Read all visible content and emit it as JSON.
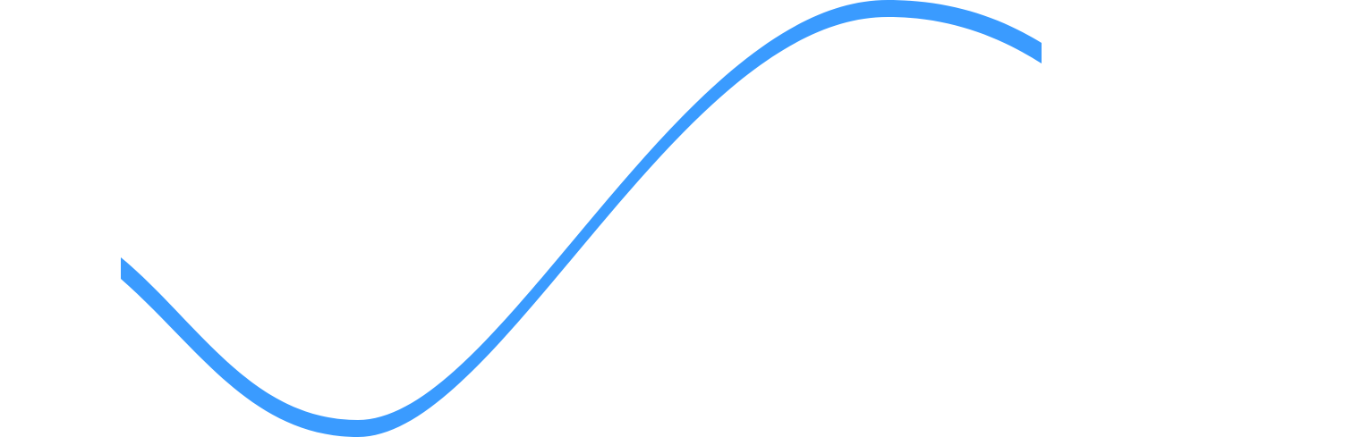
{
  "graphic": {
    "shape": "wave-ribbon",
    "colors": {
      "background": "#ffffff",
      "ribbon": "#3a9bff"
    }
  }
}
